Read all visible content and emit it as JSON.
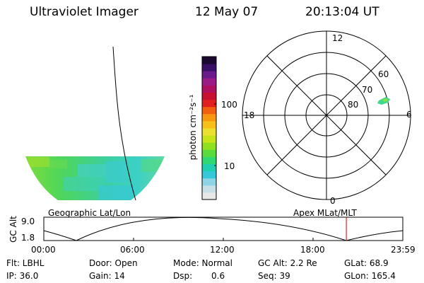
{
  "header": {
    "instrument": "Ultraviolet Imager",
    "date": "12 May 07",
    "time": "20:13:04 UT"
  },
  "colorbar": {
    "unit_label": "photon cm⁻²s⁻¹",
    "tick_labels": [
      "100",
      "10"
    ],
    "colors": [
      "#e8e8e8",
      "#c8dfe8",
      "#8fd3e6",
      "#36c8d8",
      "#1ecfb0",
      "#2fd870",
      "#58dc3c",
      "#8ee020",
      "#c6e418",
      "#ece030",
      "#f7c018",
      "#f89810",
      "#f06010",
      "#e02020",
      "#c81030",
      "#b01060",
      "#9a1a86",
      "#6a1a8c",
      "#3a1066",
      "#1a0830"
    ]
  },
  "geo_panel": {
    "label": "Geographic Lat/Lon"
  },
  "polar_panel": {
    "label": "Apex MLat/MLT",
    "mlt_labels": {
      "top": "12",
      "left": "18",
      "right": "6",
      "bottom": "0"
    },
    "lat_labels": [
      "60",
      "70",
      "80"
    ]
  },
  "timeline": {
    "ylabel": "GC Alt",
    "yticks": [
      "9.0",
      "1.8"
    ],
    "xticks": [
      "00:00",
      "06:00",
      "12:00",
      "18:00",
      "23:59"
    ],
    "current_time_fraction": 0.8428
  },
  "info": {
    "flt": "Flt: LBHL",
    "ip": "IP: 36.0",
    "door": "Door: Open",
    "gain": "Gain: 14",
    "mode": "Mode: Normal",
    "dsp_label": "Dsp:",
    "dsp_value": "0.6",
    "gcalt": "GC Alt: 2.2 Re",
    "seq": "Seq: 39",
    "glat": "GLat: 68.9",
    "glon": "GLon: 165.4"
  },
  "colors": {
    "current_time_marker": "#cc0000"
  }
}
